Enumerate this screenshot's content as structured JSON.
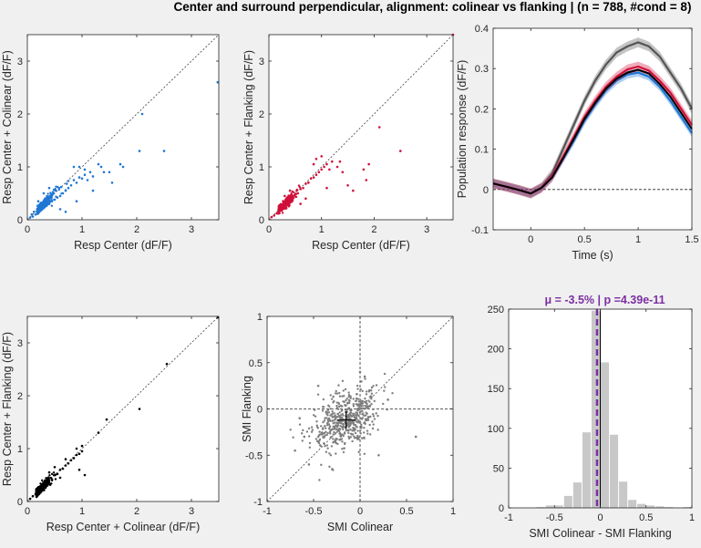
{
  "figure": {
    "title": "Center and surround perpendicular, alignment: colinear vs flanking | (n = 788, #cond = 8)"
  },
  "colors": {
    "colinear": "#1f77d4",
    "flanking": "#d0103a",
    "both": "#000000",
    "smi": "#7f7f7f",
    "hist": "#c8c8c8",
    "mean_line": "#7b2fa3",
    "gray_trace": "#555555"
  },
  "chart_data": [
    {
      "id": "p1",
      "type": "scatter",
      "xlabel": "Resp Center (dF/F)",
      "ylabel": "Resp Center + Colinear (dF/F)",
      "xlim": [
        0,
        3.5
      ],
      "ylim": [
        0,
        3.5
      ],
      "xticks": [
        0,
        1,
        2,
        3
      ],
      "yticks": [
        0,
        1,
        2,
        3
      ],
      "diagonal": true,
      "color_key": "colinear",
      "points": [
        [
          0.05,
          0.04
        ],
        [
          0.08,
          0.1
        ],
        [
          0.1,
          0.06
        ],
        [
          0.12,
          0.15
        ],
        [
          0.15,
          0.1
        ],
        [
          0.18,
          0.2
        ],
        [
          0.2,
          0.12
        ],
        [
          0.22,
          0.25
        ],
        [
          0.25,
          0.18
        ],
        [
          0.28,
          0.3
        ],
        [
          0.3,
          0.22
        ],
        [
          0.32,
          0.35
        ],
        [
          0.35,
          0.28
        ],
        [
          0.38,
          0.4
        ],
        [
          0.4,
          0.3
        ],
        [
          0.42,
          0.45
        ],
        [
          0.45,
          0.35
        ],
        [
          0.48,
          0.5
        ],
        [
          0.5,
          0.38
        ],
        [
          0.52,
          0.55
        ],
        [
          0.55,
          0.42
        ],
        [
          0.58,
          0.6
        ],
        [
          0.6,
          0.45
        ],
        [
          0.62,
          0.62
        ],
        [
          0.65,
          0.5
        ],
        [
          0.7,
          0.55
        ],
        [
          0.72,
          0.68
        ],
        [
          0.75,
          0.6
        ],
        [
          0.8,
          0.65
        ],
        [
          0.85,
          0.75
        ],
        [
          0.9,
          0.7
        ],
        [
          0.95,
          0.8
        ],
        [
          1.0,
          0.78
        ],
        [
          1.05,
          0.85
        ],
        [
          1.1,
          0.75
        ],
        [
          1.15,
          0.9
        ],
        [
          1.2,
          0.82
        ],
        [
          0.95,
          1.0
        ],
        [
          1.05,
          0.95
        ],
        [
          0.85,
          1.0
        ],
        [
          1.3,
          1.05
        ],
        [
          1.35,
          1.0
        ],
        [
          1.4,
          0.9
        ],
        [
          1.55,
          0.7
        ],
        [
          1.7,
          1.05
        ],
        [
          1.75,
          1.0
        ],
        [
          2.05,
          1.3
        ],
        [
          2.5,
          1.3
        ],
        [
          2.1,
          2.0
        ],
        [
          3.48,
          2.6
        ],
        [
          0.7,
          0.15
        ],
        [
          0.6,
          0.2
        ],
        [
          0.9,
          0.35
        ],
        [
          1.2,
          0.55
        ],
        [
          1.5,
          0.9
        ],
        [
          0.4,
          0.6
        ],
        [
          0.3,
          0.5
        ],
        [
          0.2,
          0.35
        ]
      ],
      "dense": {
        "n": 320,
        "cx": 0.18,
        "cy": 0.14,
        "sx": 0.14,
        "sy": 0.12,
        "seed": 11
      }
    },
    {
      "id": "p2",
      "type": "scatter",
      "xlabel": "Resp Center (dF/F)",
      "ylabel": "Resp Center + Flanking (dF/F)",
      "xlim": [
        0,
        3.5
      ],
      "ylim": [
        0,
        3.5
      ],
      "xticks": [
        0,
        1,
        2,
        3
      ],
      "yticks": [
        0,
        1,
        2,
        3
      ],
      "diagonal": true,
      "color_key": "flanking",
      "points": [
        [
          0.05,
          0.05
        ],
        [
          0.1,
          0.08
        ],
        [
          0.15,
          0.12
        ],
        [
          0.2,
          0.18
        ],
        [
          0.25,
          0.2
        ],
        [
          0.3,
          0.28
        ],
        [
          0.35,
          0.3
        ],
        [
          0.4,
          0.38
        ],
        [
          0.45,
          0.4
        ],
        [
          0.5,
          0.48
        ],
        [
          0.55,
          0.5
        ],
        [
          0.6,
          0.58
        ],
        [
          0.65,
          0.6
        ],
        [
          0.7,
          0.68
        ],
        [
          0.75,
          0.7
        ],
        [
          0.8,
          0.78
        ],
        [
          0.85,
          0.8
        ],
        [
          0.9,
          0.85
        ],
        [
          0.95,
          0.9
        ],
        [
          1.0,
          0.95
        ],
        [
          1.05,
          1.0
        ],
        [
          1.1,
          1.05
        ],
        [
          1.15,
          0.95
        ],
        [
          1.2,
          1.1
        ],
        [
          0.85,
          1.05
        ],
        [
          1.0,
          1.2
        ],
        [
          1.3,
          1.0
        ],
        [
          1.35,
          1.1
        ],
        [
          1.4,
          0.9
        ],
        [
          0.9,
          1.15
        ],
        [
          1.5,
          0.65
        ],
        [
          1.6,
          0.55
        ],
        [
          1.8,
          0.95
        ],
        [
          1.85,
          0.75
        ],
        [
          1.9,
          1.05
        ],
        [
          2.1,
          1.75
        ],
        [
          2.5,
          1.3
        ],
        [
          3.5,
          3.5
        ],
        [
          0.6,
          0.3
        ],
        [
          0.7,
          0.4
        ],
        [
          1.1,
          0.6
        ],
        [
          0.4,
          0.55
        ],
        [
          0.3,
          0.45
        ]
      ],
      "dense": {
        "n": 320,
        "cx": 0.18,
        "cy": 0.15,
        "sx": 0.14,
        "sy": 0.12,
        "seed": 23
      }
    },
    {
      "id": "p3",
      "type": "line",
      "xlabel": "Time (s)",
      "ylabel": "Population response (dF/F)",
      "xlim": [
        -0.35,
        1.5
      ],
      "ylim": [
        -0.1,
        0.4
      ],
      "xticks": [
        0,
        0.5,
        1,
        1.5
      ],
      "yticks": [
        -0.1,
        0,
        0.1,
        0.2,
        0.3,
        0.4
      ],
      "zero_line": true,
      "x": [
        -0.35,
        -0.2,
        -0.1,
        0.0,
        0.1,
        0.2,
        0.3,
        0.4,
        0.5,
        0.6,
        0.7,
        0.8,
        0.9,
        1.0,
        1.1,
        1.2,
        1.3,
        1.4,
        1.5
      ],
      "series": [
        {
          "color_key": "gray_trace",
          "band": 0.012,
          "values": [
            0.015,
            0.005,
            -0.002,
            -0.01,
            0.005,
            0.04,
            0.1,
            0.16,
            0.22,
            0.27,
            0.31,
            0.34,
            0.355,
            0.365,
            0.355,
            0.33,
            0.29,
            0.25,
            0.2
          ]
        },
        {
          "color_key": "colinear",
          "band": 0.01,
          "values": [
            0.015,
            0.005,
            -0.002,
            -0.01,
            0.004,
            0.03,
            0.075,
            0.12,
            0.17,
            0.21,
            0.245,
            0.27,
            0.285,
            0.29,
            0.28,
            0.255,
            0.22,
            0.18,
            0.14
          ]
        },
        {
          "color_key": "flanking",
          "band": 0.012,
          "values": [
            0.015,
            0.005,
            -0.002,
            -0.01,
            0.004,
            0.032,
            0.08,
            0.13,
            0.18,
            0.22,
            0.255,
            0.28,
            0.298,
            0.305,
            0.295,
            0.27,
            0.24,
            0.2,
            0.16
          ]
        },
        {
          "color_key": "both",
          "band": 0,
          "values": [
            0.015,
            0.005,
            -0.002,
            -0.01,
            0.004,
            0.03,
            0.077,
            0.125,
            0.175,
            0.215,
            0.25,
            0.275,
            0.29,
            0.297,
            0.288,
            0.262,
            0.23,
            0.19,
            0.15
          ]
        }
      ]
    },
    {
      "id": "p4",
      "type": "scatter",
      "xlabel": "Resp Center + Colinear (dF/F)",
      "ylabel": "Resp Center + Flanking (dF/F)",
      "xlim": [
        0,
        3.5
      ],
      "ylim": [
        0,
        3.5
      ],
      "xticks": [
        0,
        1,
        2,
        3
      ],
      "yticks": [
        0,
        1,
        2,
        3
      ],
      "diagonal": true,
      "color_key": "both",
      "points": [
        [
          0.05,
          0.05
        ],
        [
          0.1,
          0.1
        ],
        [
          0.15,
          0.14
        ],
        [
          0.2,
          0.2
        ],
        [
          0.25,
          0.23
        ],
        [
          0.3,
          0.3
        ],
        [
          0.35,
          0.33
        ],
        [
          0.4,
          0.4
        ],
        [
          0.45,
          0.42
        ],
        [
          0.5,
          0.5
        ],
        [
          0.55,
          0.52
        ],
        [
          0.6,
          0.6
        ],
        [
          0.65,
          0.62
        ],
        [
          0.7,
          0.68
        ],
        [
          0.75,
          0.72
        ],
        [
          0.8,
          0.78
        ],
        [
          0.85,
          0.82
        ],
        [
          0.9,
          0.88
        ],
        [
          0.95,
          0.9
        ],
        [
          1.0,
          0.95
        ],
        [
          0.9,
          1.0
        ],
        [
          1.0,
          1.05
        ],
        [
          0.95,
          0.6
        ],
        [
          1.05,
          0.5
        ],
        [
          1.3,
          1.3
        ],
        [
          1.45,
          1.55
        ],
        [
          2.05,
          1.75
        ],
        [
          2.55,
          2.6
        ],
        [
          3.48,
          3.48
        ],
        [
          0.5,
          0.65
        ],
        [
          0.6,
          0.45
        ],
        [
          0.7,
          0.8
        ],
        [
          0.4,
          0.55
        ]
      ],
      "dense": {
        "n": 320,
        "cx": 0.16,
        "cy": 0.16,
        "sx": 0.12,
        "sy": 0.12,
        "seed": 37
      }
    },
    {
      "id": "p5",
      "type": "scatter",
      "xlabel": "SMI Colinear",
      "ylabel": "SMI Flanking",
      "xlim": [
        -1,
        1
      ],
      "ylim": [
        -1,
        1
      ],
      "xticks": [
        -1,
        -0.5,
        0,
        0.5,
        1
      ],
      "yticks": [
        -1,
        -0.5,
        0,
        0.5,
        1
      ],
      "diagonal": true,
      "zero_cross": true,
      "color_key": "smi",
      "mean_cross": {
        "x": -0.15,
        "y": -0.12,
        "ex": 0.05,
        "ey": 0.05
      },
      "points": [
        [
          -0.7,
          -0.45
        ],
        [
          -0.6,
          -0.3
        ],
        [
          -0.55,
          -0.6
        ],
        [
          0.0,
          0.4
        ],
        [
          0.05,
          0.35
        ],
        [
          0.1,
          0.2
        ],
        [
          0.6,
          -0.3
        ],
        [
          -0.45,
          0.25
        ],
        [
          -0.3,
          -0.65
        ],
        [
          0.2,
          -0.5
        ],
        [
          0.3,
          0.1
        ],
        [
          -0.65,
          -0.1
        ]
      ],
      "dense": {
        "n": 520,
        "cx": -0.15,
        "cy": -0.12,
        "sx": 0.17,
        "sy": 0.15,
        "seed": 51
      }
    },
    {
      "id": "p6",
      "type": "bar",
      "title": "μ = -3.5% | p =4.39e-11",
      "xlabel": "SMI Colinear - SMI Flanking",
      "xlim": [
        -1,
        1
      ],
      "ylim": [
        0,
        250
      ],
      "xticks": [
        -1,
        -0.5,
        0,
        0.5,
        1
      ],
      "yticks": [
        0,
        50,
        100,
        150,
        200,
        250
      ],
      "mean": -0.035,
      "bin_width": 0.1,
      "bins": [
        -0.65,
        -0.55,
        -0.45,
        -0.35,
        -0.25,
        -0.15,
        -0.05,
        0.05,
        0.15,
        0.25,
        0.35,
        0.45,
        0.55,
        0.65,
        0.75,
        0.85,
        0.95
      ],
      "values": [
        1,
        3,
        3,
        15,
        32,
        95,
        248,
        183,
        92,
        33,
        10,
        5,
        3,
        2,
        1,
        0,
        1
      ]
    }
  ]
}
